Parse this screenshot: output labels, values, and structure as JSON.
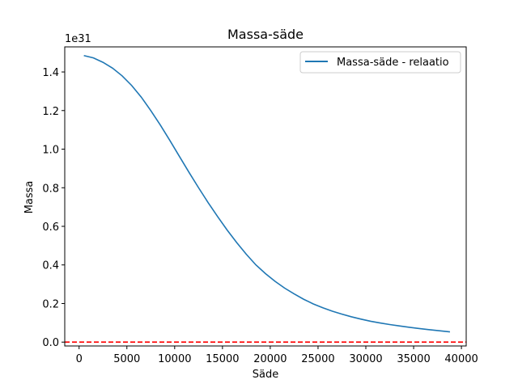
{
  "chart_data": {
    "type": "line",
    "title": "Massa-säde",
    "xlabel": "Säde",
    "ylabel": "Massa",
    "y_offset_text": "1e31",
    "y_multiplier": 1e+31,
    "xlim": [
      -1500,
      40500
    ],
    "ylim": [
      -0.02,
      1.53
    ],
    "xticks": [
      0,
      5000,
      10000,
      15000,
      20000,
      25000,
      30000,
      35000,
      40000
    ],
    "xtick_labels": [
      "0",
      "5000",
      "10000",
      "15000",
      "20000",
      "25000",
      "30000",
      "35000",
      "40000"
    ],
    "yticks": [
      0.0,
      0.2,
      0.4,
      0.6,
      0.8,
      1.0,
      1.2,
      1.4
    ],
    "ytick_labels": [
      "0.0",
      "0.2",
      "0.4",
      "0.6",
      "0.8",
      "1.0",
      "1.2",
      "1.4"
    ],
    "grid": false,
    "legend_position": "top-right",
    "series": [
      {
        "name": "Massa-säde - relaatio",
        "color": "#1f77b4",
        "style": "solid",
        "x": [
          500,
          1500,
          2500,
          3500,
          4500,
          5500,
          6500,
          7500,
          8500,
          9500,
          10500,
          11500,
          12500,
          13500,
          14500,
          15500,
          16500,
          17500,
          18500,
          19500,
          20500,
          21500,
          22500,
          23500,
          24500,
          25500,
          26500,
          27500,
          28500,
          29500,
          30500,
          31500,
          32500,
          33500,
          34500,
          35500,
          36500,
          37500,
          38800
        ],
        "y": [
          1.485,
          1.473,
          1.45,
          1.42,
          1.38,
          1.33,
          1.27,
          1.2,
          1.125,
          1.045,
          0.962,
          0.88,
          0.8,
          0.723,
          0.65,
          0.58,
          0.515,
          0.455,
          0.4,
          0.355,
          0.315,
          0.28,
          0.25,
          0.222,
          0.198,
          0.178,
          0.16,
          0.145,
          0.131,
          0.119,
          0.108,
          0.099,
          0.091,
          0.084,
          0.077,
          0.071,
          0.065,
          0.06,
          0.053
        ]
      },
      {
        "name": "",
        "color": "#ff0000",
        "style": "dashed",
        "x": [
          -1500,
          40500
        ],
        "y": [
          0.0,
          0.0
        ]
      }
    ]
  }
}
